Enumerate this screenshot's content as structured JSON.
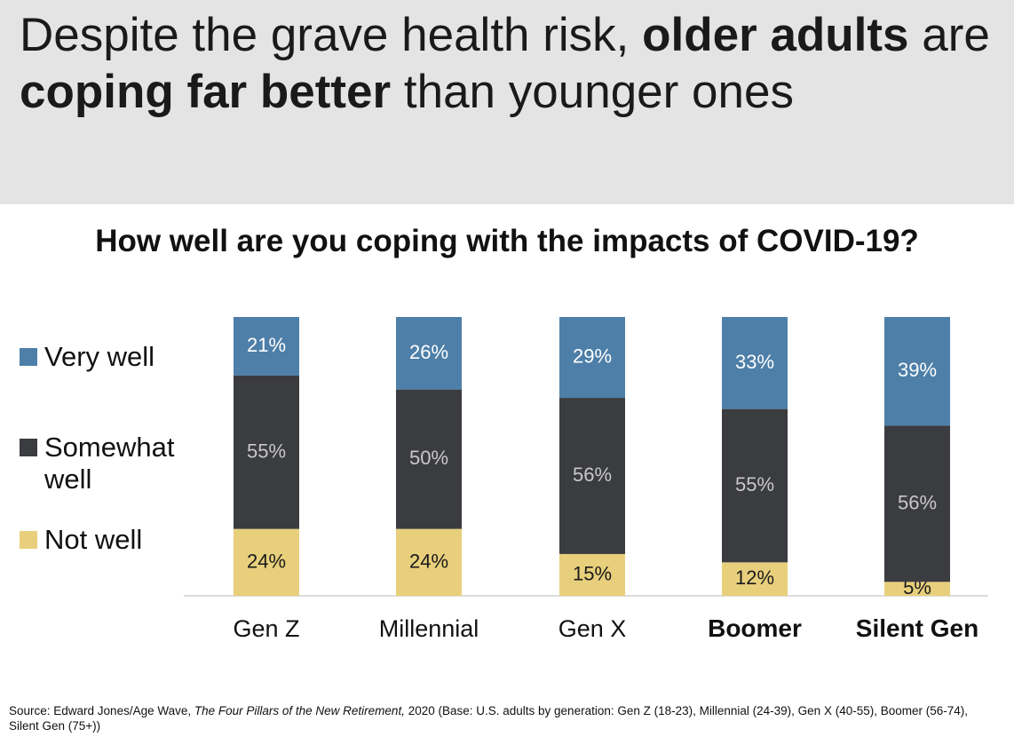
{
  "headline": {
    "part1": "Despite the grave health risk, ",
    "bold1": "older adults",
    "part2": " are ",
    "bold2": "coping far better",
    "part3": " than younger ones"
  },
  "colors": {
    "very_well": "#4e7fa8",
    "somewhat_well": "#3b3c40",
    "not_well": "#e8cf7c",
    "header_band": "#e4e4e4"
  },
  "chart_data": {
    "type": "bar",
    "stacked": true,
    "percent_stacked": true,
    "title": "How well are you coping with the impacts of COVID-19?",
    "categories": [
      "Gen Z",
      "Millennial",
      "Gen X",
      "Boomer",
      "Silent Gen"
    ],
    "bold_categories": [
      "Boomer",
      "Silent Gen"
    ],
    "series": [
      {
        "name": "Not well",
        "values": [
          24,
          24,
          15,
          12,
          5
        ],
        "labels": [
          "24%",
          "24%",
          "15%",
          "12%",
          "5%"
        ]
      },
      {
        "name": "Somewhat well",
        "values": [
          55,
          50,
          56,
          55,
          56
        ],
        "labels": [
          "55%",
          "50%",
          "56%",
          "55%",
          "56%"
        ]
      },
      {
        "name": "Very well",
        "values": [
          21,
          26,
          29,
          33,
          39
        ],
        "labels": [
          "21%",
          "26%",
          "29%",
          "33%",
          "39%"
        ]
      }
    ],
    "legend": {
      "placement": "left",
      "items": [
        "Very well",
        "Somewhat well",
        "Not well"
      ]
    },
    "ylim": [
      0,
      100
    ],
    "grid": false
  },
  "source": {
    "prefix": "Source: Edward Jones/Age Wave, ",
    "title_italic": "The Four Pillars of the New Retirement,",
    "suffix": " 2020 (Base: U.S. adults by generation: Gen Z (18-23), Millennial (24-39), Gen X (40-55), Boomer (56-74), Silent Gen (75+))"
  }
}
